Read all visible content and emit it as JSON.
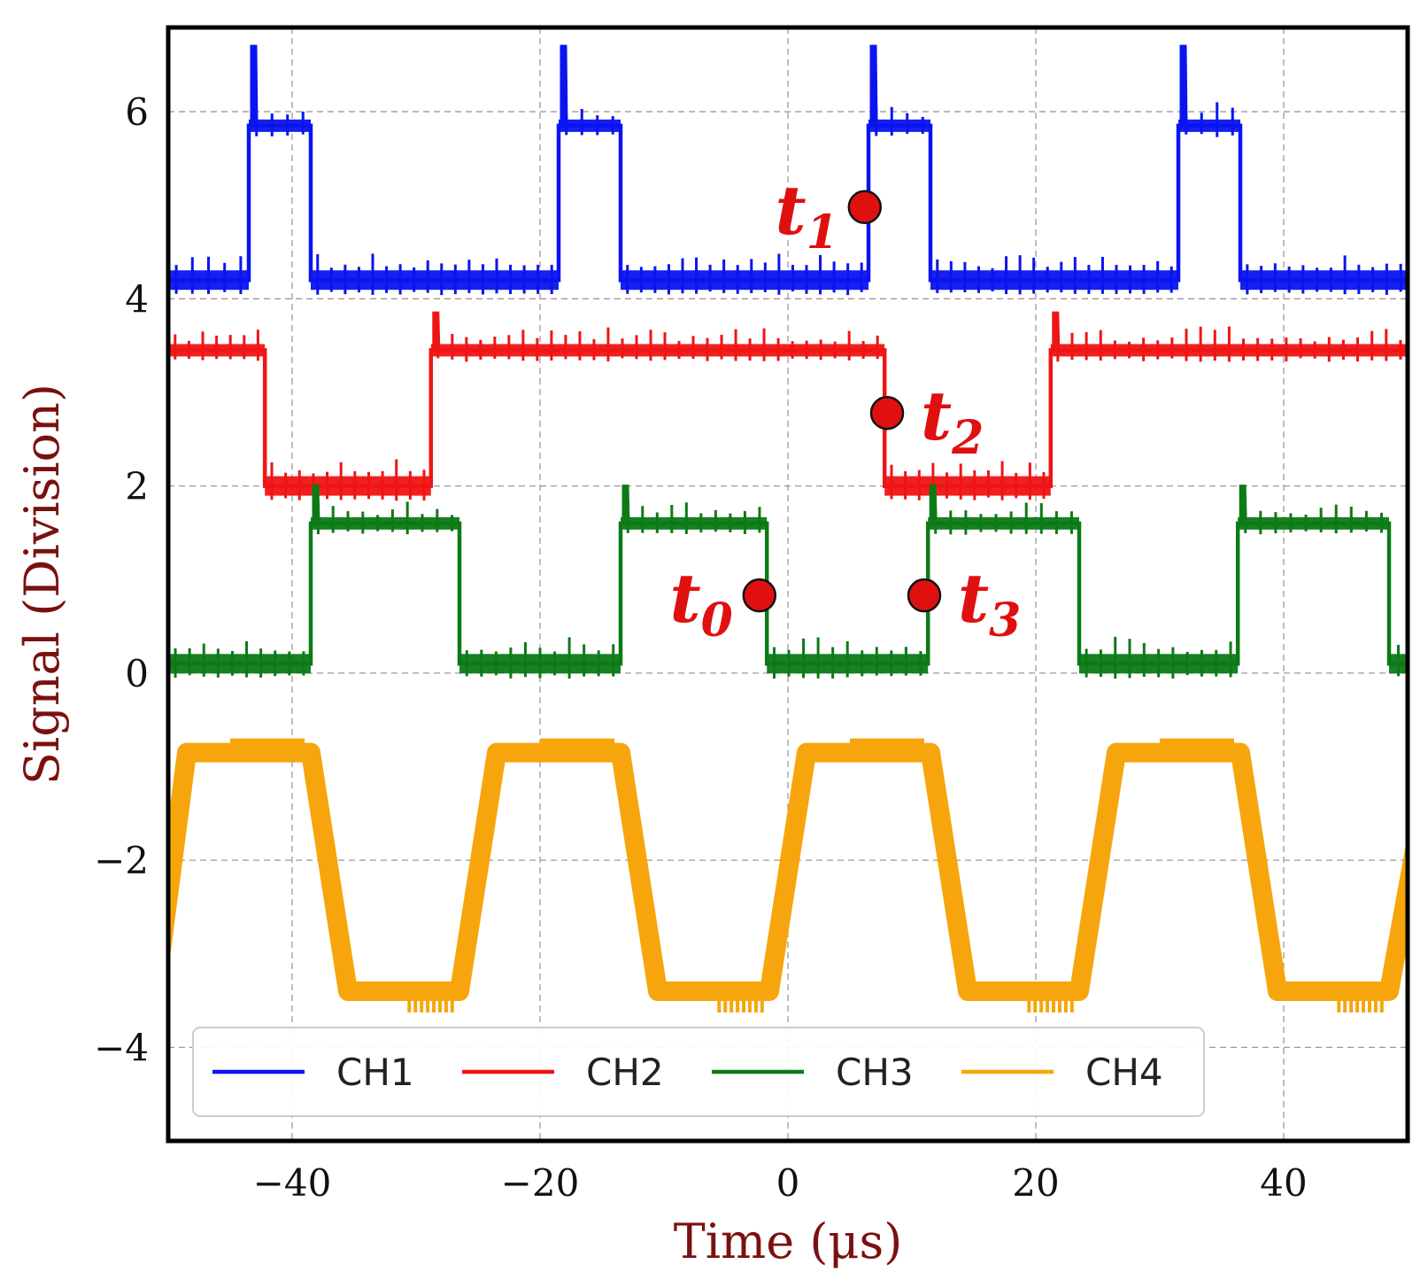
{
  "chart_data": {
    "type": "line",
    "title": "",
    "xlabel": "Time (μs)",
    "ylabel": "Signal (Division)",
    "xlim": [
      -50,
      50
    ],
    "ylim": [
      -5,
      6.9
    ],
    "x_ticks": [
      -40,
      -20,
      0,
      20,
      40
    ],
    "y_ticks": [
      -4,
      -2,
      0,
      2,
      4,
      6
    ],
    "x_tick_labels": [
      "−40",
      "−20",
      "0",
      "20",
      "40"
    ],
    "y_tick_labels": [
      "−4",
      "−2",
      "0",
      "2",
      "4",
      "6"
    ],
    "grid": true,
    "legend": {
      "placement": "bottom",
      "columns": 4
    },
    "series": [
      {
        "name": "CH1",
        "color": "#0a14f0",
        "period_us": 25,
        "low": 4.2,
        "high": 5.85,
        "spike": 6.7,
        "rising_edges": [
          -43.5,
          -18.5,
          6.5,
          31.5
        ],
        "falling_edges": [
          -38.5,
          -13.5,
          11.5,
          36.5
        ]
      },
      {
        "name": "CH2",
        "color": "#f01414",
        "period_us": 50,
        "low": 2.0,
        "high": 3.45,
        "spike": 3.85,
        "falling_edges": [
          -42.2,
          7.8
        ],
        "rising_edges": [
          -28.8,
          21.2
        ]
      },
      {
        "name": "CH3",
        "color": "#0c7a16",
        "period_us": 25,
        "low": 0.1,
        "high": 1.6,
        "spike": 2.0,
        "rising_edges": [
          -38.5,
          -13.5,
          11.3,
          36.3
        ],
        "falling_edges": [
          -26.5,
          -1.7,
          23.5,
          48.5
        ]
      },
      {
        "name": "CH4",
        "color": "#f6a60c",
        "period_us": 25,
        "low": -3.4,
        "high": -0.85,
        "ramp_up_start": [
          -51,
          -26.5,
          -1.5,
          23.5,
          48.5
        ],
        "ramp_up_end": [
          -48.5,
          -23.5,
          1.5,
          26.5
        ],
        "ramp_down_start": [
          -38.5,
          -13.5,
          11.5,
          36.5
        ],
        "ramp_down_end": [
          -35.5,
          -10.5,
          14.5,
          39.5
        ]
      }
    ],
    "annotations": [
      {
        "base": "t",
        "sub": "1",
        "x": 6.2,
        "y": 4.98,
        "label_side": "left"
      },
      {
        "base": "t",
        "sub": "2",
        "x": 8.0,
        "y": 2.78,
        "label_side": "right"
      },
      {
        "base": "t",
        "sub": "0",
        "x": -2.3,
        "y": 0.83,
        "label_side": "left"
      },
      {
        "base": "t",
        "sub": "3",
        "x": 11.0,
        "y": 0.83,
        "label_side": "right"
      }
    ]
  }
}
